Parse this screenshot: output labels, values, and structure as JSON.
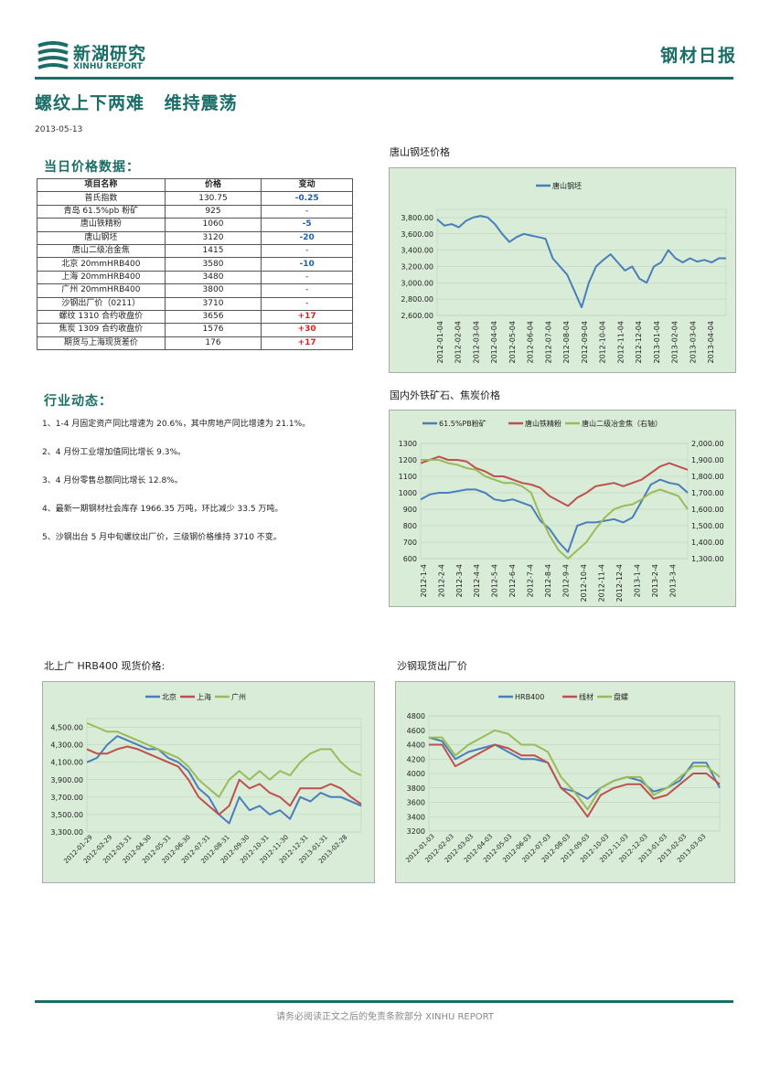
{
  "header": {
    "brand_cn": "新湖研究",
    "brand_en": "XINHU REPORT",
    "report_type": "钢材日报",
    "title": "螺纹上下两难 维持震荡",
    "date": "2013-05-13"
  },
  "price_section": {
    "heading": "当日价格数据：",
    "columns": [
      "项目名称",
      "价格",
      "变动"
    ],
    "rows": [
      {
        "name": "普氏指数",
        "price": "130.75",
        "change": "-0.25",
        "dir": "neg"
      },
      {
        "name": "青岛 61.5%pb 粉矿",
        "price": "925",
        "change": "-",
        "dir": "none"
      },
      {
        "name": "唐山铁精粉",
        "price": "1060",
        "change": "-5",
        "dir": "neg"
      },
      {
        "name": "唐山钢坯",
        "price": "3120",
        "change": "-20",
        "dir": "neg"
      },
      {
        "name": "唐山二级冶金焦",
        "price": "1415",
        "change": "-",
        "dir": "none"
      },
      {
        "name": "北京 20mmHRB400",
        "price": "3580",
        "change": "-10",
        "dir": "neg"
      },
      {
        "name": "上海 20mmHRB400",
        "price": "3480",
        "change": "-",
        "dir": "none"
      },
      {
        "name": "广州 20mmHRB400",
        "price": "3800",
        "change": "-",
        "dir": "none"
      },
      {
        "name": "沙钢出厂价（0211）",
        "price": "3710",
        "change": "-",
        "dir": "none"
      },
      {
        "name": "螺纹 1310 合约收盘价",
        "price": "3656",
        "change": "+17",
        "dir": "pos"
      },
      {
        "name": "焦炭 1309 合约收盘价",
        "price": "1576",
        "change": "+30",
        "dir": "pos"
      },
      {
        "name": "期货与上海现货差价",
        "price": "176",
        "change": "+17",
        "dir": "pos"
      }
    ]
  },
  "news_section": {
    "heading": "行业动态：",
    "items": [
      "1、1-4 月固定资产同比增速为 20.6%，其中房地产同比增速为 21.1%。",
      "2、4 月份工业增加值同比增长 9.3%。",
      "3、4 月份零售总额同比增长 12.8%。",
      "4、最新一期钢材社会库存 1966.35 万吨，环比减少 33.5 万吨。",
      "5、沙钢出台 5 月中旬螺纹出厂价，三级钢价格维持 3710 不变。"
    ]
  },
  "colors": {
    "brand": "#1b6e67",
    "blue": "#4a7ebb",
    "red": "#c0504d",
    "green": "#9bbb59",
    "plot_bg": "#d8ecd8"
  },
  "footer": {
    "text": "请务必阅读正文之后的免责条款部分 XINHU REPORT"
  },
  "chart_data": [
    {
      "id": "billet",
      "caption": "唐山钢坯价格",
      "type": "line",
      "series": [
        {
          "name": "唐山钢坯",
          "color": "#4a7ebb",
          "values": [
            3780,
            3700,
            3720,
            3680,
            3760,
            3800,
            3820,
            3800,
            3720,
            3600,
            3500,
            3560,
            3600,
            3580,
            3560,
            3540,
            3300,
            3200,
            3100,
            2900,
            2700,
            3000,
            3200,
            3280,
            3350,
            3250,
            3150,
            3200,
            3050,
            3000,
            3200,
            3250,
            3400,
            3300,
            3250,
            3300,
            3260,
            3280,
            3250,
            3300,
            3300
          ]
        }
      ],
      "x_ticks": [
        "2012-01-04",
        "2012-02-04",
        "2012-03-04",
        "2012-04-04",
        "2012-05-04",
        "2012-06-04",
        "2012-07-04",
        "2012-08-04",
        "2012-09-04",
        "2012-10-04",
        "2012-11-04",
        "2012-12-04",
        "2013-01-04",
        "2013-02-04",
        "2013-03-04",
        "2013-04-04"
      ],
      "y_ticks": [
        "3,800.00",
        "3,600.00",
        "3,400.00",
        "3,200.00",
        "3,000.00",
        "2,800.00",
        "2,600.00"
      ],
      "ylim": [
        2600,
        3900
      ],
      "legend_position": "top"
    },
    {
      "id": "ore-coke",
      "caption": "国内外铁矿石、焦炭价格",
      "type": "line",
      "series": [
        {
          "name": "61.5%PB粉矿",
          "color": "#4a7ebb",
          "axis": "left",
          "values": [
            960,
            990,
            1000,
            1000,
            1010,
            1020,
            1020,
            1000,
            960,
            950,
            960,
            940,
            920,
            830,
            780,
            700,
            640,
            800,
            820,
            820,
            830,
            840,
            820,
            850,
            950,
            1050,
            1080,
            1060,
            1050,
            1000
          ]
        },
        {
          "name": "唐山铁精粉",
          "color": "#c0504d",
          "axis": "left",
          "values": [
            1180,
            1200,
            1220,
            1200,
            1200,
            1190,
            1150,
            1130,
            1100,
            1100,
            1080,
            1060,
            1050,
            1030,
            980,
            950,
            920,
            970,
            1000,
            1040,
            1050,
            1060,
            1040,
            1060,
            1080,
            1120,
            1160,
            1180,
            1160,
            1140
          ]
        },
        {
          "name": "唐山二级冶金焦（右轴）",
          "color": "#9bbb59",
          "axis": "right",
          "values": [
            1900,
            1900,
            1900,
            1880,
            1870,
            1850,
            1840,
            1800,
            1780,
            1760,
            1760,
            1740,
            1700,
            1560,
            1440,
            1350,
            1300,
            1350,
            1400,
            1480,
            1550,
            1600,
            1620,
            1630,
            1660,
            1700,
            1720,
            1700,
            1680,
            1600
          ]
        }
      ],
      "x_ticks": [
        "2012-1-4",
        "2012-2-4",
        "2012-3-4",
        "2012-4-4",
        "2012-5-4",
        "2012-6-4",
        "2012-7-4",
        "2012-8-4",
        "2012-9-4",
        "2012-10-4",
        "2012-11-4",
        "2012-12-4",
        "2013-1-4",
        "2013-2-4",
        "2013-3-4"
      ],
      "y_ticks_left": [
        "1300",
        "1200",
        "1100",
        "1000",
        "900",
        "800",
        "700",
        "600"
      ],
      "y_ticks_right": [
        "2,000.00",
        "1,900.00",
        "1,800.00",
        "1,700.00",
        "1,600.00",
        "1,500.00",
        "1,400.00",
        "1,300.00"
      ],
      "ylim_left": [
        600,
        1300
      ],
      "ylim_right": [
        1300,
        2000
      ],
      "legend_position": "top"
    },
    {
      "id": "hrb400",
      "caption": "北上广 HRB400 现货价格:",
      "type": "line",
      "series": [
        {
          "name": "北京",
          "color": "#4a7ebb",
          "values": [
            4100,
            4150,
            4300,
            4400,
            4350,
            4300,
            4250,
            4250,
            4150,
            4100,
            4000,
            3800,
            3700,
            3500,
            3400,
            3700,
            3550,
            3600,
            3500,
            3550,
            3450,
            3700,
            3650,
            3750,
            3700,
            3700,
            3650,
            3600
          ]
        },
        {
          "name": "上海",
          "color": "#c0504d",
          "values": [
            4250,
            4200,
            4200,
            4250,
            4280,
            4250,
            4200,
            4150,
            4100,
            4050,
            3900,
            3700,
            3600,
            3500,
            3600,
            3900,
            3800,
            3850,
            3750,
            3700,
            3600,
            3800,
            3800,
            3800,
            3850,
            3800,
            3700,
            3620
          ]
        },
        {
          "name": "广州",
          "color": "#9bbb59",
          "values": [
            4550,
            4500,
            4450,
            4450,
            4400,
            4350,
            4300,
            4250,
            4200,
            4150,
            4050,
            3900,
            3800,
            3700,
            3900,
            4000,
            3900,
            4000,
            3900,
            4000,
            3950,
            4100,
            4200,
            4250,
            4250,
            4100,
            4000,
            3950
          ]
        }
      ],
      "x_ticks": [
        "2012-01-29",
        "2012-02-29",
        "2012-03-31",
        "2012-04-30",
        "2012-05-31",
        "2012-06-30",
        "2012-07-31",
        "2012-08-31",
        "2012-09-30",
        "2012-10-31",
        "2012-11-30",
        "2012-12-31",
        "2013-01-31",
        "2013-02-28"
      ],
      "y_ticks": [
        "4,500.00",
        "4,300.00",
        "4,100.00",
        "3,900.00",
        "3,700.00",
        "3,500.00",
        "3,300.00"
      ],
      "ylim": [
        3300,
        4600
      ],
      "legend_position": "top"
    },
    {
      "id": "shagang",
      "caption": "沙钢现货出厂价",
      "type": "line",
      "series": [
        {
          "name": "HRB400",
          "color": "#4a7ebb",
          "values": [
            4500,
            4450,
            4200,
            4300,
            4350,
            4400,
            4300,
            4200,
            4200,
            4150,
            3800,
            3750,
            3650,
            3800,
            3900,
            3950,
            3900,
            3750,
            3800,
            3900,
            4150,
            4150,
            3800
          ]
        },
        {
          "name": "线材",
          "color": "#c0504d",
          "values": [
            4400,
            4400,
            4100,
            4200,
            4300,
            4400,
            4350,
            4250,
            4250,
            4150,
            3800,
            3650,
            3400,
            3700,
            3800,
            3850,
            3850,
            3650,
            3700,
            3850,
            4000,
            4000,
            3850
          ]
        },
        {
          "name": "盘螺",
          "color": "#9bbb59",
          "values": [
            4500,
            4500,
            4250,
            4400,
            4500,
            4600,
            4550,
            4400,
            4400,
            4300,
            3950,
            3750,
            3500,
            3800,
            3900,
            3950,
            3950,
            3700,
            3800,
            3950,
            4100,
            4100,
            3950
          ]
        }
      ],
      "x_ticks": [
        "2012-01-03",
        "2012-02-03",
        "2012-03-03",
        "2012-04-03",
        "2012-05-03",
        "2012-06-03",
        "2012-07-03",
        "2012-08-03",
        "2012-09-03",
        "2012-10-03",
        "2012-11-03",
        "2012-12-03",
        "2013-01-03",
        "2013-02-03",
        "2013-03-03"
      ],
      "y_ticks": [
        "4800",
        "4600",
        "4400",
        "4200",
        "4000",
        "3800",
        "3600",
        "3400",
        "3200"
      ],
      "ylim": [
        3200,
        4800
      ],
      "legend_position": "top"
    }
  ]
}
